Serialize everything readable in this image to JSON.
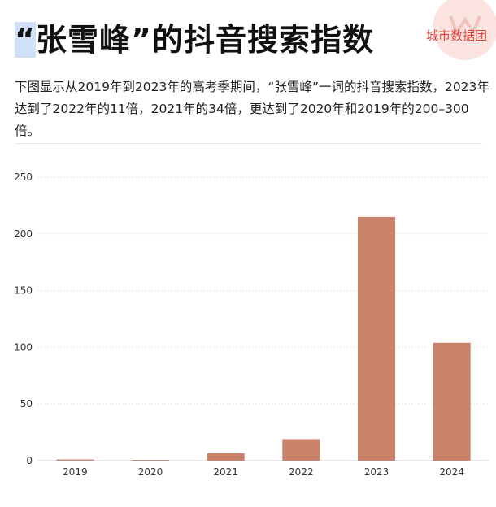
{
  "header": {
    "title_quote_open": "“",
    "title_rest": "张雪峰”的抖音搜索指数",
    "brand": "城市数据团",
    "description": "下图显示从2019年到2023年的高考季期间，“张雪峰”一词的抖音搜索指数，2023年达到了2022年的11倍，2021年的34倍，更达到了2020年和2019年的200–300倍。"
  },
  "colors": {
    "bar": "#c8836a",
    "grid": "#e6e6e6",
    "brand": "#d9443a"
  },
  "chart_data": {
    "type": "bar",
    "categories": [
      "2019",
      "2020",
      "2021",
      "2022",
      "2023",
      "2024"
    ],
    "values": [
      1,
      0.7,
      6.5,
      19,
      215,
      104
    ],
    "ylim": [
      0,
      250
    ],
    "yticks": [
      0,
      50,
      100,
      150,
      200,
      250
    ],
    "grid": true,
    "title": "",
    "xlabel": "",
    "ylabel": ""
  }
}
